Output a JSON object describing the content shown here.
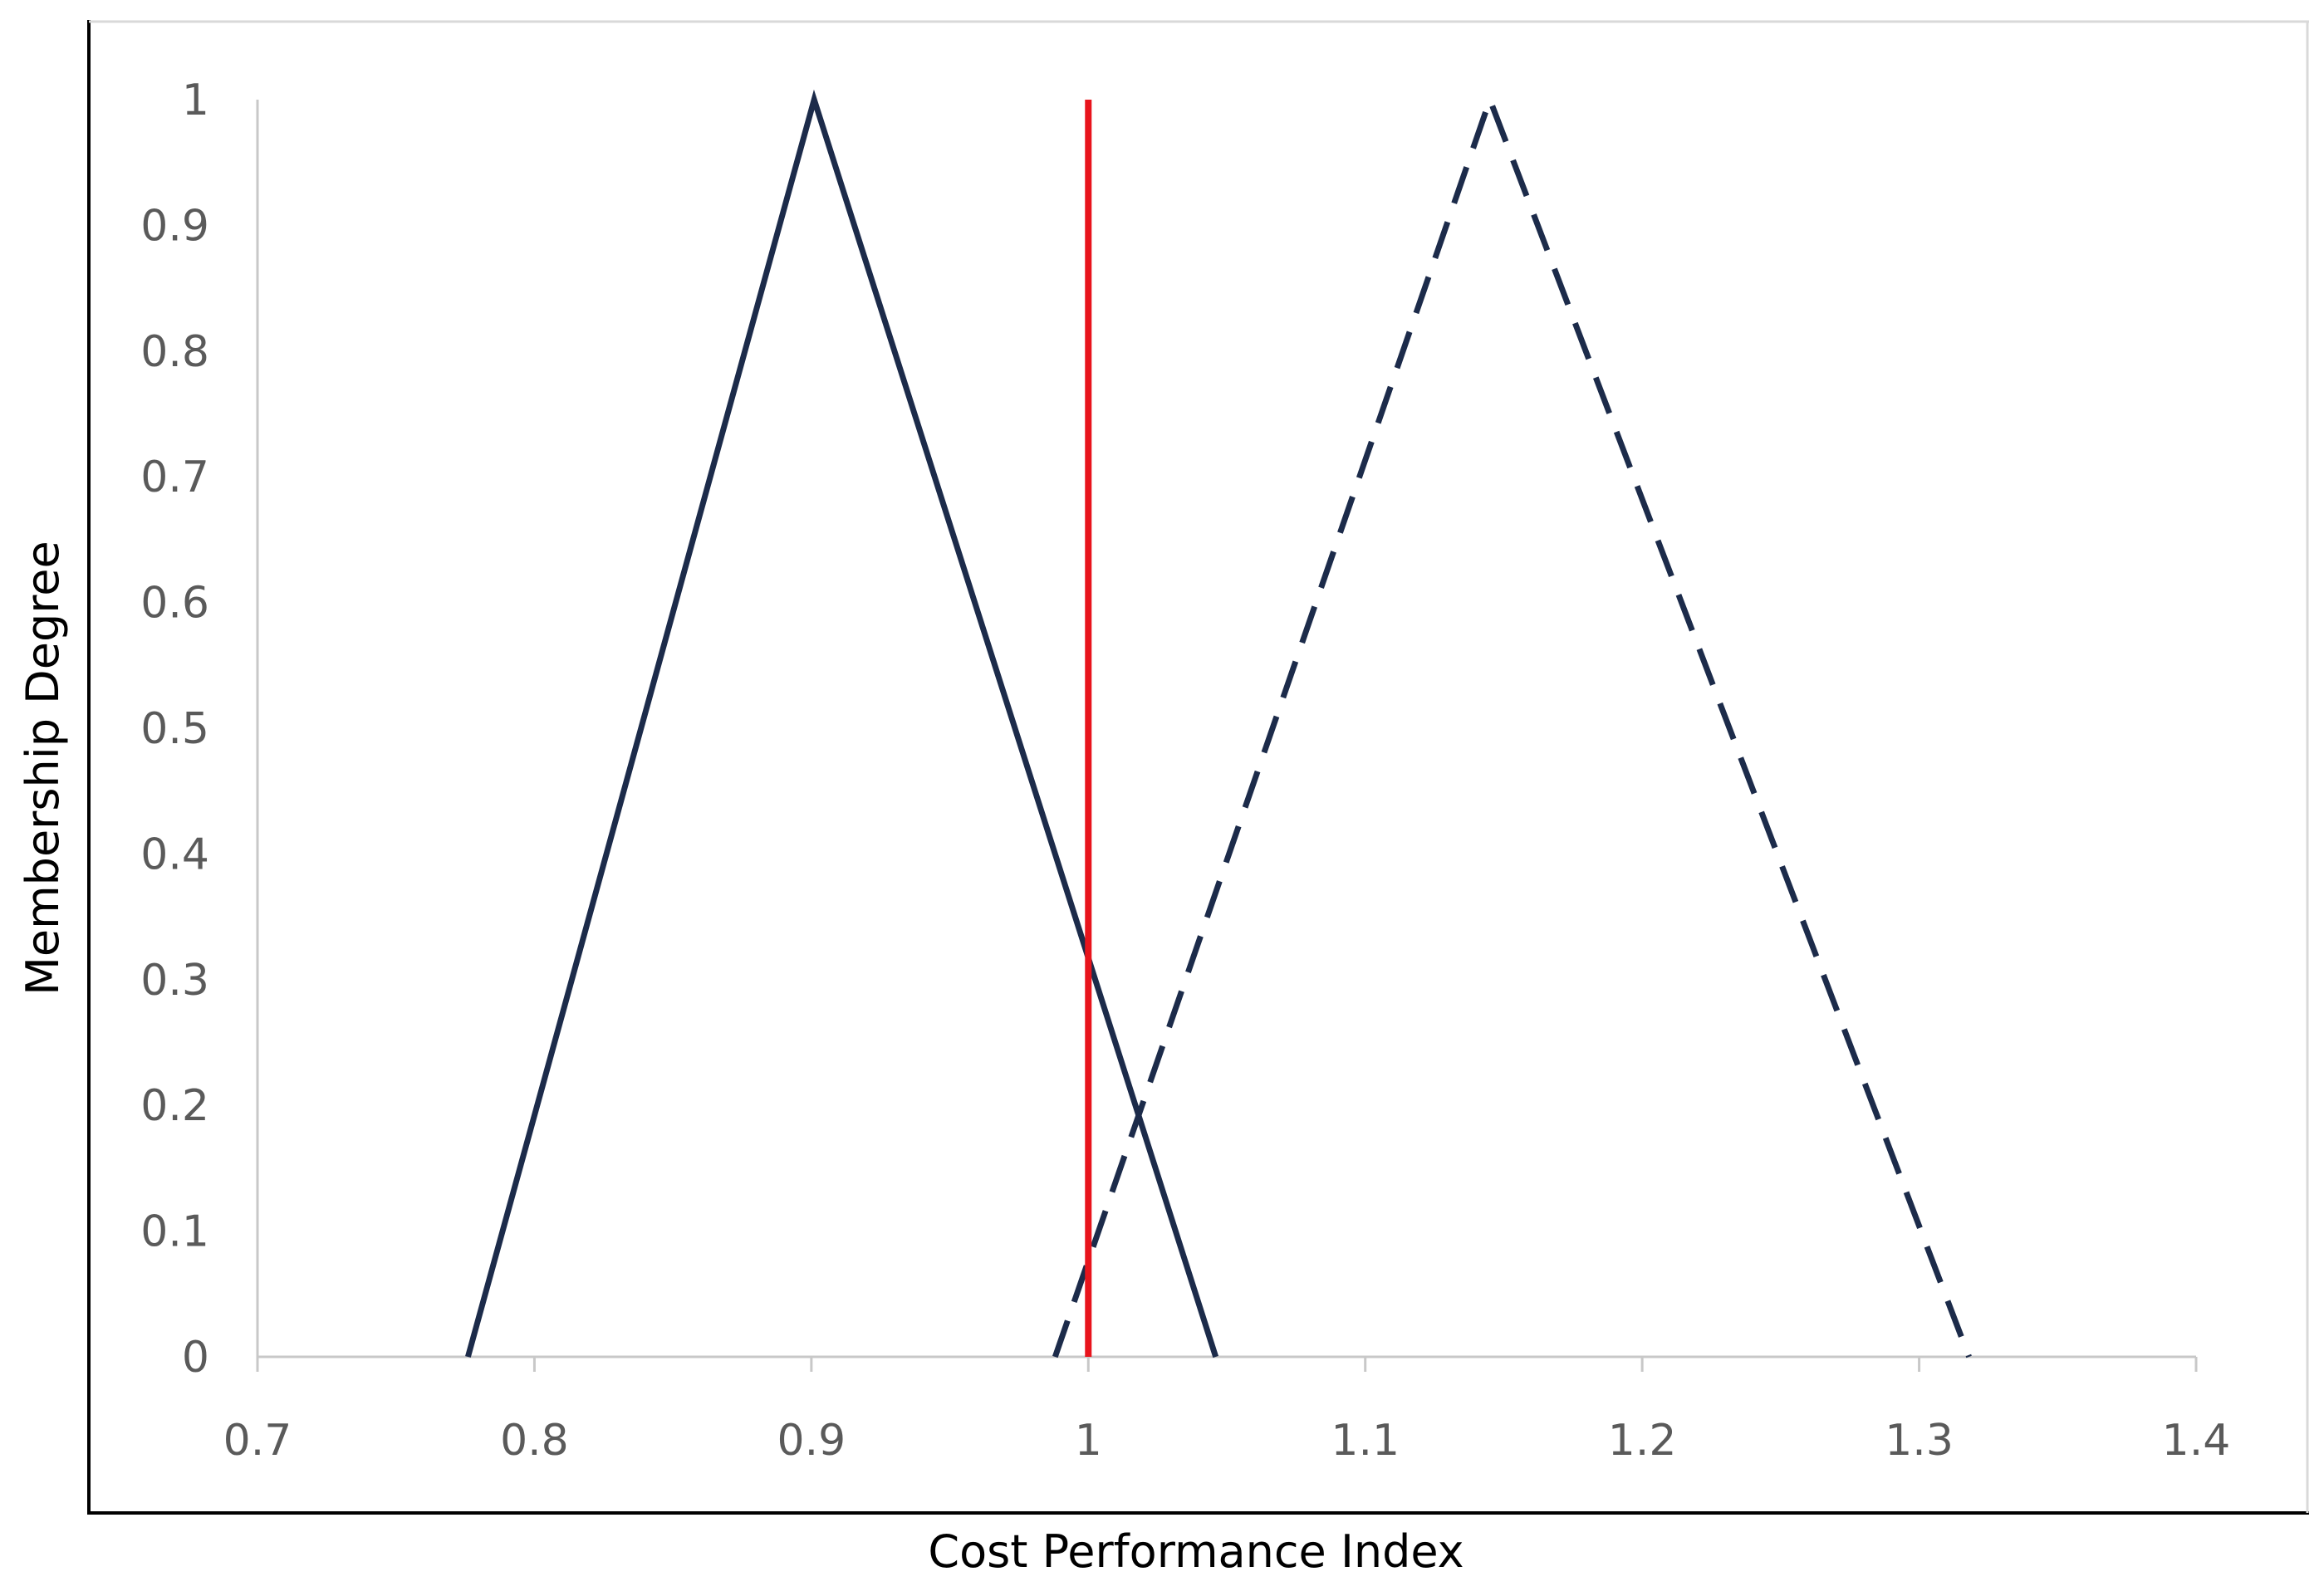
{
  "chart_data": {
    "type": "line",
    "title": "",
    "xlabel": "Cost Performance Index",
    "ylabel": "Membership Degree",
    "xlim": [
      0.7,
      1.4
    ],
    "ylim": [
      0,
      1
    ],
    "x_ticks": [
      "0.7",
      "0.8",
      "0.9",
      "1",
      "1.1",
      "1.2",
      "1.3",
      "1.4"
    ],
    "y_ticks": [
      "0",
      "0.1",
      "0.2",
      "0.3",
      "0.4",
      "0.5",
      "0.6",
      "0.7",
      "0.8",
      "0.9",
      "1"
    ],
    "grid": false,
    "legend": "none",
    "series": [
      {
        "style": "solid",
        "color": "#1c2b4a",
        "points": [
          [
            0.776,
            0
          ],
          [
            0.901,
            1
          ],
          [
            1.046,
            0
          ]
        ]
      },
      {
        "style": "dashed",
        "color": "#1c2b4a",
        "points": [
          [
            0.988,
            0
          ],
          [
            1.145,
            1
          ],
          [
            1.318,
            0
          ]
        ]
      }
    ],
    "vertical_lines": [
      {
        "style": "solid",
        "color": "#e8141c",
        "x": 1.0,
        "y_range": [
          0,
          1
        ]
      }
    ]
  }
}
